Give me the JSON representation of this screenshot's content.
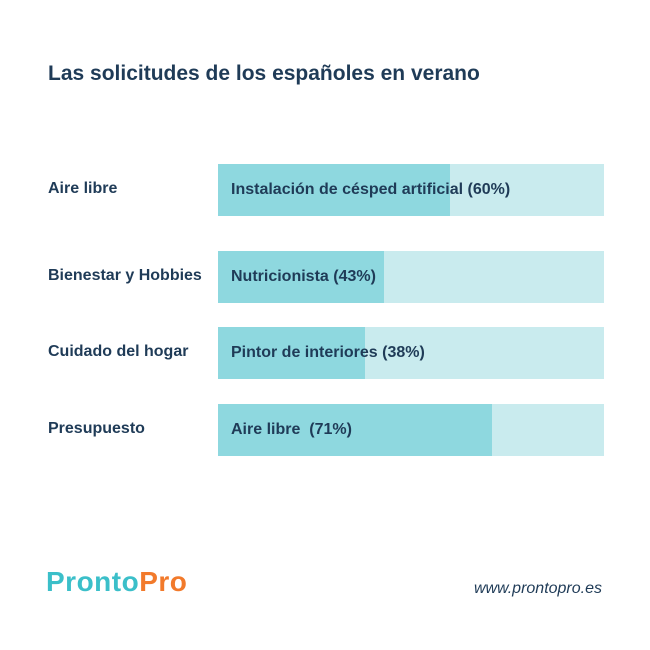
{
  "chart_data": {
    "type": "bar",
    "title": "Las solicitudes de los españoles en verano",
    "categories": [
      "Aire libre",
      "Bienestar y Hobbies",
      "Cuidado del hogar",
      "Presupuesto"
    ],
    "bar_labels": [
      "Instalación de césped artificial (60%)",
      "Nutricionista (43%)",
      "Pintor de interiores (38%)",
      "Aire libre  (71%)"
    ],
    "values": [
      60,
      43,
      38,
      71
    ],
    "xlim": [
      0,
      100
    ],
    "colors": {
      "fill": "#8ed8df",
      "track": "#c9ebee",
      "text": "#1f3b57"
    }
  },
  "logo": {
    "part1": "Pronto",
    "part2": "Pro",
    "color1": "#3bbfc9",
    "color2": "#f27a2b"
  },
  "website": "www.prontopro.es"
}
